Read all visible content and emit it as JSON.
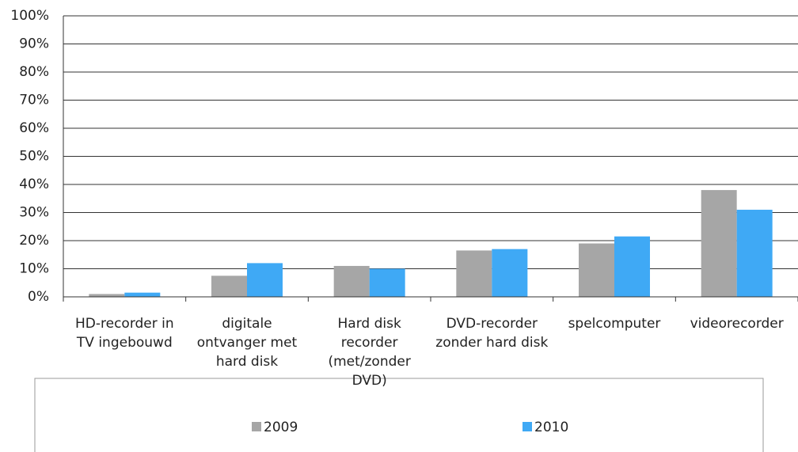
{
  "chart_data": {
    "type": "bar",
    "categories": [
      "HD-recorder in TV ingebouwd",
      "digitale ontvanger met hard disk",
      "Hard disk recorder (met/zonder DVD)",
      "DVD-recorder zonder hard disk",
      "spelcomputer",
      "videorecorder"
    ],
    "series": [
      {
        "name": "2009",
        "color": "#a6a6a6",
        "values": [
          1,
          7.5,
          11,
          16.5,
          19,
          38
        ]
      },
      {
        "name": "2010",
        "color": "#3fa9f5",
        "values": [
          1.5,
          12,
          10,
          17,
          21.5,
          31
        ]
      }
    ],
    "ylim": [
      0,
      100
    ],
    "yticks": [
      {
        "value": 0,
        "label": "0%"
      },
      {
        "value": 10,
        "label": "10%"
      },
      {
        "value": 20,
        "label": "20%"
      },
      {
        "value": 30,
        "label": "30%"
      },
      {
        "value": 40,
        "label": "40%"
      },
      {
        "value": 50,
        "label": "50%"
      },
      {
        "value": 60,
        "label": "60%"
      },
      {
        "value": 70,
        "label": "70%"
      },
      {
        "value": 80,
        "label": "80%"
      },
      {
        "value": 90,
        "label": "90%"
      },
      {
        "value": 100,
        "label": "100%"
      }
    ],
    "grid": true,
    "legend": "bottom"
  }
}
